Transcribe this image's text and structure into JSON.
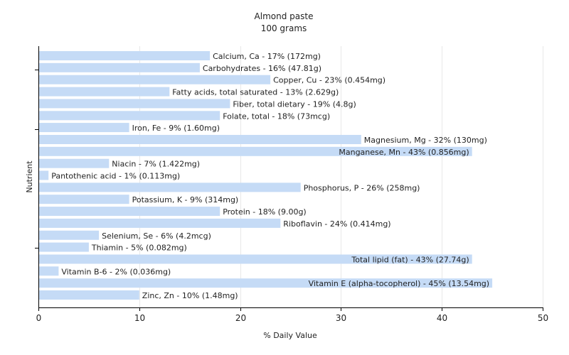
{
  "chart_data": {
    "type": "bar",
    "orientation": "horizontal",
    "title": "Almond paste",
    "subtitle": "100 grams",
    "xlabel": "% Daily Value",
    "ylabel": "Nutrient",
    "xlim": [
      0,
      50
    ],
    "xticks": [
      0,
      10,
      20,
      30,
      40,
      50
    ],
    "grid": true,
    "bar_color": "#c5dbf6",
    "categories": [
      "Calcium, Ca",
      "Carbohydrates",
      "Copper, Cu",
      "Fatty acids, total saturated",
      "Fiber, total dietary",
      "Folate, total",
      "Iron, Fe",
      "Magnesium, Mg",
      "Manganese, Mn",
      "Niacin",
      "Pantothenic acid",
      "Phosphorus, P",
      "Potassium, K",
      "Protein",
      "Riboflavin",
      "Selenium, Se",
      "Thiamin",
      "Total lipid (fat)",
      "Vitamin B-6",
      "Vitamin E (alpha-tocopherol)",
      "Zinc, Zn"
    ],
    "values": [
      17,
      16,
      23,
      13,
      19,
      18,
      9,
      32,
      43,
      7,
      1,
      26,
      9,
      18,
      24,
      6,
      5,
      43,
      2,
      45,
      10
    ],
    "labels": [
      "Calcium, Ca - 17% (172mg)",
      "Carbohydrates - 16% (47.81g)",
      "Copper, Cu - 23% (0.454mg)",
      "Fatty acids, total saturated - 13% (2.629g)",
      "Fiber, total dietary - 19% (4.8g)",
      "Folate, total - 18% (73mcg)",
      "Iron, Fe - 9% (1.60mg)",
      "Magnesium, Mg - 32% (130mg)",
      "Manganese, Mn - 43% (0.856mg)",
      "Niacin - 7% (1.422mg)",
      "Pantothenic acid - 1% (0.113mg)",
      "Phosphorus, P - 26% (258mg)",
      "Potassium, K - 9% (314mg)",
      "Protein - 18% (9.00g)",
      "Riboflavin - 24% (0.414mg)",
      "Selenium, Se - 6% (4.2mcg)",
      "Thiamin - 5% (0.082mg)",
      "Total lipid (fat) - 43% (27.74g)",
      "Vitamin B-6 - 2% (0.036mg)",
      "Vitamin E (alpha-tocopherol) - 45% (13.54mg)",
      "Zinc, Zn - 10% (1.48mg)"
    ]
  }
}
